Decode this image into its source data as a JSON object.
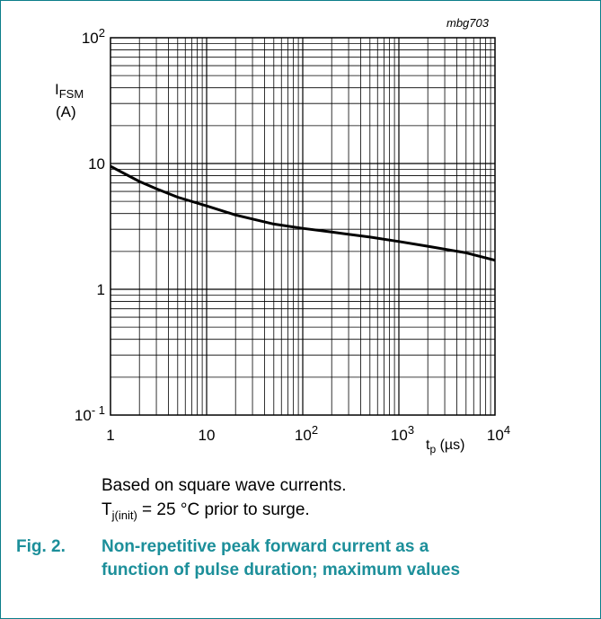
{
  "chart_data": {
    "type": "line",
    "x_scale": "log",
    "y_scale": "log",
    "xlim": [
      1,
      10000
    ],
    "ylim": [
      0.1,
      100
    ],
    "grid": true,
    "id_tag": "mbg703",
    "y_ticks": [
      {
        "base": "10",
        "exp": "2"
      },
      {
        "base": "10",
        "exp": ""
      },
      {
        "base": "1",
        "exp": ""
      },
      {
        "base": "10",
        "exp": "- 1"
      }
    ],
    "x_ticks": [
      {
        "base": "1",
        "exp": ""
      },
      {
        "base": "10",
        "exp": ""
      },
      {
        "base": "10",
        "exp": "2"
      },
      {
        "base": "10",
        "exp": "3"
      },
      {
        "base": "10",
        "exp": "4"
      }
    ],
    "ylabel": {
      "main": "I",
      "sub": "FSM",
      "unit": "(A)"
    },
    "xlabel": {
      "main": "t",
      "sub": "p",
      "unit": " (µs)"
    },
    "series": [
      {
        "x": [
          1,
          2,
          3,
          5,
          10,
          20,
          50,
          100,
          200,
          500,
          1000,
          2000,
          5000,
          10000
        ],
        "y": [
          9.5,
          7.2,
          6.3,
          5.4,
          4.6,
          3.9,
          3.3,
          3.05,
          2.85,
          2.6,
          2.4,
          2.2,
          1.95,
          1.7
        ]
      }
    ]
  },
  "notes": {
    "line1": "Based on square wave currents.",
    "line2_main": "T",
    "line2_sub": "j(init)",
    "line2_rest": " = 25 °C prior to surge."
  },
  "caption": {
    "label": "Fig. 2.",
    "line1": "Non-repetitive peak forward current as a",
    "line2": "function of pulse duration; maximum values"
  }
}
